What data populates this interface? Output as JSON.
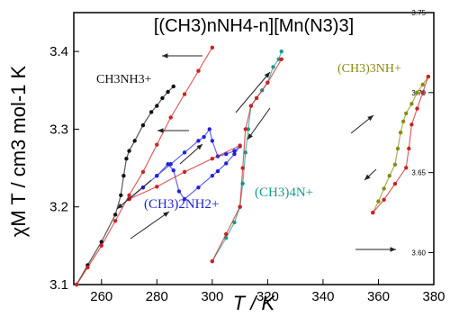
{
  "chart_data": {
    "type": "scatter",
    "title": "[(CH3)nNH4-n][Mn(N3)3]",
    "xlabel": "T / K",
    "ylabel": "χM T / cm3 mol-1 K",
    "xlim": [
      250,
      380
    ],
    "ylim": [
      3.1,
      3.45
    ],
    "right_ylim": [
      3.58,
      3.75
    ],
    "x_ticks": [
      260,
      280,
      300,
      320,
      340,
      360,
      380
    ],
    "y_ticks": [
      3.1,
      3.2,
      3.3,
      3.4
    ],
    "right_y_ticks": [
      3.6,
      3.65,
      3.7,
      3.75
    ],
    "series": [
      {
        "name": "CH3NH3+ heating",
        "label": "CH3NH3+",
        "axis": "left",
        "color": "#111111",
        "x": [
          251,
          255,
          260,
          265,
          267,
          268,
          269,
          270,
          272,
          275,
          278,
          280,
          282,
          284,
          286
        ],
        "y": [
          3.1,
          3.125,
          3.155,
          3.19,
          3.215,
          3.24,
          3.262,
          3.272,
          3.285,
          3.305,
          3.322,
          3.33,
          3.34,
          3.348,
          3.355
        ]
      },
      {
        "name": "CH3NH3+ cooling",
        "axis": "left",
        "color": "#cc2222",
        "x": [
          251,
          255,
          260,
          265,
          270,
          275,
          280,
          285,
          290,
          295,
          300
        ],
        "y": [
          3.1,
          3.122,
          3.15,
          3.182,
          3.215,
          3.245,
          3.28,
          3.315,
          3.345,
          3.375,
          3.405
        ]
      },
      {
        "name": "(CH3)2NH2+",
        "label": "(CH3)2NH2+",
        "axis": "left",
        "color": "#2222dd",
        "x": [
          270,
          275,
          280,
          285,
          290,
          295,
          297,
          299,
          300,
          302,
          305,
          308,
          310,
          308,
          305,
          302,
          300,
          295,
          290,
          288,
          286,
          284,
          280,
          275,
          270
        ],
        "y": [
          3.21,
          3.225,
          3.24,
          3.255,
          3.27,
          3.285,
          3.29,
          3.3,
          3.285,
          3.265,
          3.268,
          3.272,
          3.278,
          3.268,
          3.256,
          3.246,
          3.24,
          3.225,
          3.21,
          3.22,
          3.247,
          3.255,
          3.24,
          3.225,
          3.21
        ]
      },
      {
        "name": "(CH3)2NH2+ red",
        "axis": "left",
        "color": "#cc2222",
        "x": [
          270,
          280,
          290,
          300,
          310
        ],
        "y": [
          3.21,
          3.226,
          3.245,
          3.262,
          3.279
        ]
      },
      {
        "name": "(CH3)4N+",
        "label": "(CH3)4N+",
        "axis": "left",
        "color": "#1a9a8a",
        "x": [
          300,
          305,
          308,
          310,
          311,
          312,
          313,
          314,
          316,
          318,
          320,
          322,
          324,
          325
        ],
        "y": [
          3.13,
          3.16,
          3.18,
          3.2,
          3.23,
          3.27,
          3.3,
          3.33,
          3.34,
          3.35,
          3.36,
          3.38,
          3.39,
          3.4
        ]
      },
      {
        "name": "(CH3)4N+ red",
        "axis": "left",
        "color": "#cc2222",
        "x": [
          300,
          305,
          310,
          311,
          312,
          314,
          316,
          320,
          325
        ],
        "y": [
          3.13,
          3.165,
          3.2,
          3.25,
          3.3,
          3.33,
          3.34,
          3.36,
          3.39
        ]
      },
      {
        "name": "(CH3)3NH+",
        "label": "(CH3)3NH+",
        "axis": "right",
        "color": "#8a8a10",
        "x": [
          358,
          360,
          362,
          364,
          366,
          367,
          368,
          369,
          370,
          372,
          374,
          376,
          378
        ],
        "y": [
          3.625,
          3.632,
          3.64,
          3.648,
          3.655,
          3.665,
          3.675,
          3.682,
          3.687,
          3.693,
          3.7,
          3.705,
          3.71
        ]
      },
      {
        "name": "(CH3)3NH+ red",
        "axis": "right",
        "color": "#cc2222",
        "x": [
          358,
          362,
          366,
          370,
          371,
          372,
          374,
          376,
          378
        ],
        "y": [
          3.625,
          3.633,
          3.643,
          3.653,
          3.665,
          3.68,
          3.69,
          3.7,
          3.71
        ]
      }
    ]
  }
}
